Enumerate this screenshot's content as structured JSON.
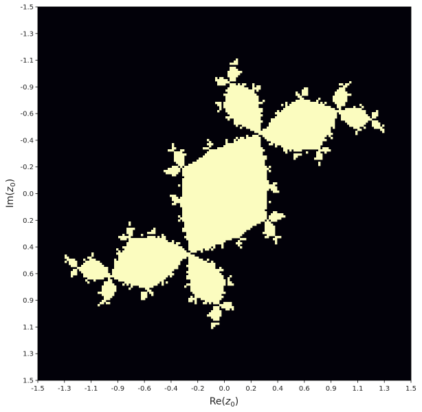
{
  "chart_data": {
    "type": "heatmap",
    "title": "",
    "xlabel": "Re(z0)",
    "ylabel": "Im(z0)",
    "xlim": [
      -1.5,
      1.5
    ],
    "ylim": [
      -1.5,
      1.5
    ],
    "y_axis_direction": "increasing-downward",
    "grid": false,
    "legend": "none",
    "x_tick_labels": [
      "-1.5",
      "-1.3",
      "-1.1",
      "-0.9",
      "-0.6",
      "-0.4",
      "-0.2",
      "0.0",
      "0.2",
      "0.4",
      "0.6",
      "0.9",
      "1.1",
      "1.3",
      "1.5"
    ],
    "y_tick_labels": [
      "-1.5",
      "-1.3",
      "-1.1",
      "-0.9",
      "-0.6",
      "-0.4",
      "-0.2",
      "0.0",
      "0.2",
      "0.4",
      "0.6",
      "0.9",
      "1.1",
      "1.3",
      "1.5"
    ],
    "colors": {
      "background": "#020109",
      "set": "#fbfcbf"
    },
    "fractal": {
      "c_real": -0.12,
      "c_imag": 0.75,
      "max_iter": 60,
      "escape_radius": 2
    }
  }
}
